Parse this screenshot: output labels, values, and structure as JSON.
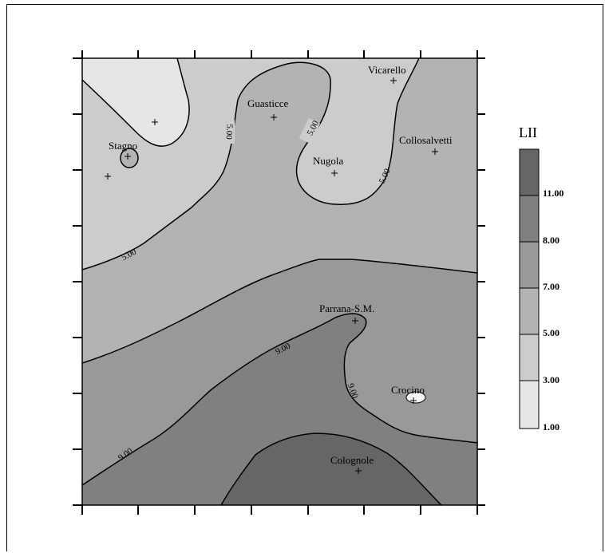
{
  "chart_data": {
    "type": "contour",
    "title": "",
    "legend_title": "LII",
    "legend_levels": [
      "1.00",
      "3.00",
      "5.00",
      "7.00",
      "8.00",
      "11.00"
    ],
    "legend_placement": "right",
    "contour_labels": [
      "5.00",
      "5.00",
      "5.00",
      "5.00",
      "9.00",
      "9.00",
      "9.00"
    ],
    "locations": [
      {
        "name": "Vicarello"
      },
      {
        "name": "Guasticce"
      },
      {
        "name": "Stagno"
      },
      {
        "name": "Nugola"
      },
      {
        "name": "Collosalvetti"
      },
      {
        "name": "Parrana-S.M."
      },
      {
        "name": "Crocino"
      },
      {
        "name": "Colognole"
      }
    ],
    "colors": {
      "band_1_3": "#e6e6e6",
      "band_3_5": "#cccccc",
      "band_5_7": "#b3b3b3",
      "band_7_8": "#999999",
      "band_8_11": "#808080",
      "band_11_plus": "#666666"
    }
  }
}
